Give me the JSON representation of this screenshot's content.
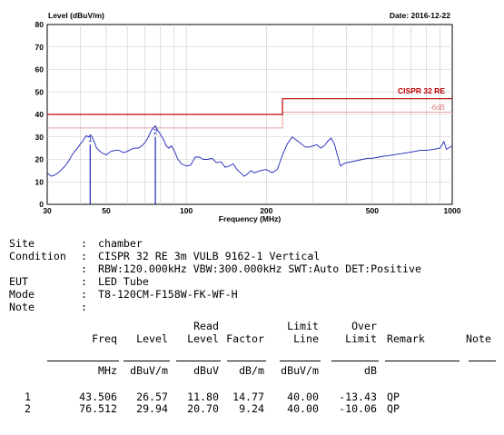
{
  "chart_data": {
    "type": "line",
    "ylabel": "Level (dBuV/m)",
    "xlabel": "Frequency (MHz)",
    "date": "Date: 2016-12-22",
    "xscale": "log",
    "xlim": [
      30,
      1000
    ],
    "ylim": [
      0,
      80
    ],
    "xticks": [
      30,
      50,
      100,
      200,
      500,
      1000
    ],
    "yticks": [
      0,
      10,
      20,
      30,
      40,
      50,
      60,
      70,
      80
    ],
    "grid": true,
    "limit_label": "CISPR 32 RE",
    "margin_label": "-6dB",
    "limit_line": {
      "x": [
        30,
        230,
        230,
        1000
      ],
      "y": [
        40,
        40,
        47,
        47
      ]
    },
    "margin_line": {
      "x": [
        30,
        230,
        230,
        1000
      ],
      "y": [
        34,
        34,
        41,
        41
      ]
    },
    "series": [
      {
        "x": [
          30,
          31,
          32,
          33,
          34,
          35,
          36,
          37,
          38,
          39,
          40,
          41,
          42,
          43,
          43.5,
          44,
          45,
          46,
          48,
          50,
          52,
          54,
          56,
          58,
          60,
          62,
          64,
          66,
          68,
          70,
          72,
          74,
          76.5,
          78,
          80,
          82,
          84,
          86,
          88,
          90,
          93,
          96,
          100,
          104,
          108,
          112,
          116,
          120,
          125,
          130,
          135,
          140,
          145,
          150,
          155,
          160,
          165,
          170,
          175,
          180,
          190,
          200,
          210,
          220,
          230,
          240,
          250,
          260,
          270,
          280,
          290,
          300,
          310,
          320,
          330,
          340,
          350,
          360,
          370,
          380,
          390,
          400,
          420,
          440,
          460,
          480,
          500,
          530,
          560,
          600,
          640,
          680,
          720,
          760,
          800,
          850,
          900,
          930,
          950,
          1000
        ],
        "values": [
          14,
          12.5,
          13,
          14,
          15.5,
          17,
          19,
          21.5,
          23.5,
          25,
          27,
          28.5,
          30.5,
          30,
          31,
          30.5,
          28,
          25,
          23,
          22,
          23.5,
          24,
          24,
          23,
          23.5,
          24.5,
          25,
          25,
          26,
          27.5,
          30,
          33,
          35,
          33,
          31,
          29,
          26,
          25,
          26,
          24,
          20,
          18,
          17,
          17.5,
          21,
          21,
          20,
          20,
          20.5,
          18.5,
          19,
          16.5,
          17,
          18,
          15.5,
          14,
          12.5,
          13.5,
          15,
          14,
          15,
          15.5,
          14,
          15.5,
          22,
          27,
          30,
          28.5,
          27,
          25.5,
          25.5,
          26,
          26.5,
          25,
          26,
          28,
          29.5,
          27,
          22,
          17,
          18,
          18.5,
          19,
          19.5,
          20,
          20.5,
          20.5,
          21,
          21.5,
          22,
          22.5,
          23,
          23.5,
          24,
          24,
          24.5,
          25,
          28,
          24.5,
          26
        ]
      }
    ],
    "markers": [
      {
        "x": 43.506,
        "y": 26.57
      },
      {
        "x": 76.512,
        "y": 29.94
      }
    ],
    "marker_labels": [
      "1",
      "2"
    ]
  },
  "info": [
    {
      "label": "Site",
      "sep": ":",
      "value": "chamber"
    },
    {
      "label": "Condition",
      "sep": ":",
      "value": "CISPR 32 RE 3m VULB 9162-1 Vertical"
    },
    {
      "label": "",
      "sep": ":",
      "value": "RBW:120.000kHz VBW:300.000kHz SWT:Auto DET:Positive"
    },
    {
      "label": "EUT",
      "sep": ":",
      "value": "LED Tube"
    },
    {
      "label": "Mode",
      "sep": ":",
      "value": "T8-120CM-F158W-FK-WF-H"
    },
    {
      "label": "Note",
      "sep": ":",
      "value": ""
    }
  ],
  "table": {
    "header_top": [
      "",
      "",
      "Read",
      "",
      "Limit",
      "Over",
      "",
      ""
    ],
    "header_mid": [
      "Freq",
      "Level",
      "Level",
      "Factor",
      "Line",
      "Limit",
      "Remark",
      "Note"
    ],
    "units": [
      "MHz",
      "dBuV/m",
      "dBuV",
      "dB/m",
      "dBuV/m",
      "dB",
      "",
      ""
    ],
    "rows": [
      [
        "1",
        "43.506",
        "26.57",
        "11.80",
        "14.77",
        "40.00",
        "-13.43",
        "QP"
      ],
      [
        "2",
        "76.512",
        "29.94",
        "20.70",
        "9.24",
        "40.00",
        "-10.06",
        "QP"
      ]
    ]
  },
  "colors": {
    "trace": "#1a23b8",
    "limit": "#c00000",
    "margin": "#e8a0a0",
    "grid": "#c8c8c8"
  }
}
